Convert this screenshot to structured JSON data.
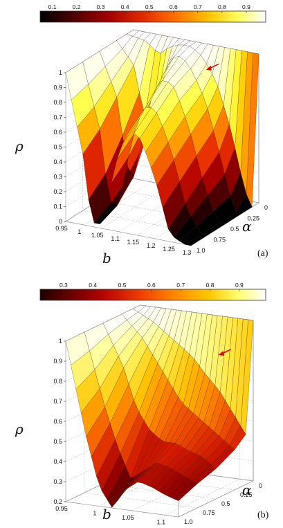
{
  "chart_data": [
    {
      "type": "surface3d",
      "panel_label": "(a)",
      "colorbar_ticks": [
        "0.1",
        "0.2",
        "0.3",
        "0.4",
        "0.5",
        "0.6",
        "0.7",
        "0.8",
        "0.9"
      ],
      "colorbar_range": [
        0.05,
        0.98
      ],
      "z_label": "ρ",
      "x_label": "b",
      "y_label": "α",
      "z_ticks": [
        "1",
        "0.9",
        "0.8",
        "0.7",
        "0.6",
        "0.5",
        "0.4",
        "0.3",
        "0.2",
        "0.1",
        "0"
      ],
      "z_range": [
        0,
        1
      ],
      "b_ticks": [
        "0.95",
        "1",
        "1.05",
        "1.1",
        "1.15",
        "1.2",
        "1.25",
        "1.3"
      ],
      "b_range": [
        0.95,
        1.3
      ],
      "alpha_ticks": [
        "1.0",
        "0.75",
        "0.5",
        "0.25",
        "0"
      ],
      "alpha_range": [
        0,
        1
      ],
      "alpha_slices": [
        {
          "alpha": 0.0,
          "b": [
            0.95,
            1.0,
            1.02,
            1.04,
            1.06,
            1.08,
            1.1,
            1.13,
            1.16,
            1.2,
            1.24,
            1.28,
            1.3
          ],
          "rho": [
            1.0,
            1.0,
            1.0,
            1.0,
            1.0,
            1.0,
            1.0,
            1.0,
            1.0,
            1.0,
            1.0,
            1.0,
            1.0
          ]
        },
        {
          "alpha": 0.1,
          "b": [
            0.95,
            1.0,
            1.02,
            1.04,
            1.06,
            1.08,
            1.1,
            1.13,
            1.16,
            1.2,
            1.24,
            1.28,
            1.3
          ],
          "rho": [
            1.0,
            0.98,
            0.95,
            0.9,
            0.95,
            0.98,
            1.0,
            1.0,
            0.95,
            0.8,
            0.5,
            0.1,
            0.0
          ]
        },
        {
          "alpha": 0.25,
          "b": [
            0.95,
            1.0,
            1.02,
            1.04,
            1.06,
            1.08,
            1.1,
            1.13,
            1.16,
            1.2,
            1.24,
            1.28,
            1.3
          ],
          "rho": [
            1.0,
            0.85,
            0.6,
            0.45,
            0.6,
            0.8,
            0.95,
            0.98,
            0.9,
            0.7,
            0.35,
            0.0,
            0.0
          ]
        },
        {
          "alpha": 0.5,
          "b": [
            0.95,
            1.0,
            1.02,
            1.04,
            1.06,
            1.08,
            1.1,
            1.13,
            1.16,
            1.2,
            1.24,
            1.28,
            1.3
          ],
          "rho": [
            1.0,
            0.7,
            0.35,
            0.15,
            0.35,
            0.6,
            0.8,
            0.9,
            0.85,
            0.6,
            0.25,
            0.0,
            0.0
          ]
        },
        {
          "alpha": 0.75,
          "b": [
            0.95,
            1.0,
            1.02,
            1.04,
            1.06,
            1.08,
            1.1,
            1.13,
            1.16,
            1.2,
            1.24,
            1.28,
            1.3
          ],
          "rho": [
            1.0,
            0.55,
            0.15,
            0.03,
            0.2,
            0.45,
            0.65,
            0.8,
            0.75,
            0.5,
            0.15,
            0.0,
            0.0
          ]
        },
        {
          "alpha": 1.0,
          "b": [
            0.95,
            1.0,
            1.02,
            1.04,
            1.06,
            1.08,
            1.1,
            1.13,
            1.16,
            1.2,
            1.24,
            1.28,
            1.3
          ],
          "rho": [
            1.0,
            0.45,
            0.05,
            0.0,
            0.1,
            0.35,
            0.55,
            0.7,
            0.65,
            0.4,
            0.05,
            0.0,
            0.0
          ]
        }
      ],
      "colormap": [
        "#000000",
        "#5a0000",
        "#b00000",
        "#e83000",
        "#ff7a00",
        "#ffc800",
        "#ffff40",
        "#ffffc8",
        "#ffffff"
      ]
    },
    {
      "type": "surface3d",
      "panel_label": "(b)",
      "colorbar_ticks": [
        "0.3",
        "0.4",
        "0.5",
        "0.6",
        "0.7",
        "0.8",
        "0.9"
      ],
      "colorbar_range": [
        0.22,
        0.99
      ],
      "z_label": "ρ",
      "x_label": "b",
      "y_label": "α",
      "z_ticks": [
        "1",
        "0.9",
        "0.8",
        "0.7",
        "0.6",
        "0.5",
        "0.4",
        "0.3",
        "0.2"
      ],
      "z_range": [
        0.2,
        1
      ],
      "b_ticks": [
        "0.95",
        "1",
        "1.05",
        "1.1"
      ],
      "b_range": [
        0.95,
        1.12
      ],
      "alpha_ticks": [
        "1.0",
        "0.75",
        "0.5",
        "0.25",
        "0"
      ],
      "alpha_range": [
        0,
        1
      ],
      "alpha_slices": [
        {
          "alpha": 0.0,
          "b": [
            0.95,
            0.98,
            1.0,
            1.02,
            1.04,
            1.06,
            1.08,
            1.1,
            1.12
          ],
          "rho": [
            1.0,
            1.0,
            1.0,
            1.0,
            1.0,
            1.0,
            1.0,
            1.0,
            1.0
          ]
        },
        {
          "alpha": 0.1,
          "b": [
            0.95,
            0.98,
            1.0,
            1.02,
            1.04,
            1.06,
            1.08,
            1.1,
            1.12
          ],
          "rho": [
            1.0,
            0.95,
            0.9,
            0.85,
            0.8,
            0.72,
            0.65,
            0.55,
            0.45
          ]
        },
        {
          "alpha": 0.25,
          "b": [
            0.95,
            0.98,
            1.0,
            1.02,
            1.04,
            1.06,
            1.08,
            1.1,
            1.12
          ],
          "rho": [
            1.0,
            0.9,
            0.8,
            0.7,
            0.6,
            0.55,
            0.5,
            0.45,
            0.4
          ]
        },
        {
          "alpha": 0.5,
          "b": [
            0.95,
            0.98,
            1.0,
            1.02,
            1.04,
            1.06,
            1.08,
            1.1,
            1.12
          ],
          "rho": [
            1.0,
            0.8,
            0.6,
            0.5,
            0.45,
            0.45,
            0.42,
            0.4,
            0.35
          ]
        },
        {
          "alpha": 0.75,
          "b": [
            0.95,
            0.98,
            1.0,
            1.02,
            1.04,
            1.06,
            1.08,
            1.1,
            1.12
          ],
          "rho": [
            1.0,
            0.65,
            0.45,
            0.3,
            0.35,
            0.4,
            0.38,
            0.35,
            0.32
          ]
        },
        {
          "alpha": 1.0,
          "b": [
            0.95,
            0.98,
            1.0,
            1.02,
            1.04,
            1.06,
            1.08,
            1.1,
            1.12
          ],
          "rho": [
            1.0,
            0.55,
            0.3,
            0.2,
            0.3,
            0.35,
            0.33,
            0.3,
            0.28
          ]
        }
      ],
      "colormap": [
        "#400000",
        "#900000",
        "#d01800",
        "#f05000",
        "#ff8a00",
        "#ffc000",
        "#ffe840",
        "#ffffa0",
        "#ffffff"
      ]
    }
  ]
}
